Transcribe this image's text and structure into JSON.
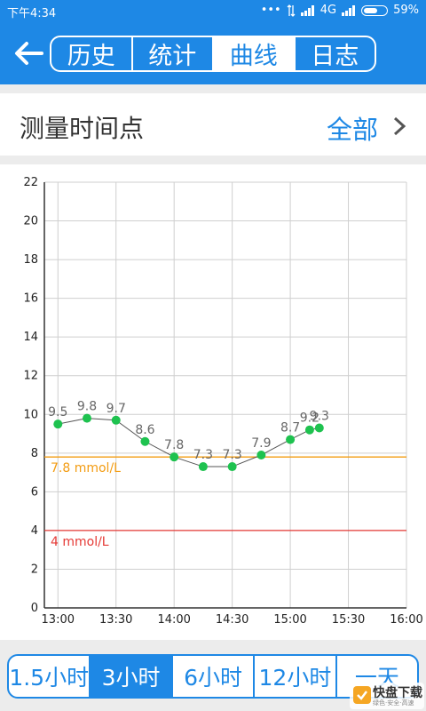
{
  "status_bar": {
    "time": "下午4:34",
    "signal_text": "4G",
    "battery_percent": "59%",
    "battery_level": 0.59
  },
  "header": {
    "tabs": [
      "历史",
      "统计",
      "曲线",
      "日志"
    ],
    "active_tab": 2
  },
  "filter": {
    "label": "测量时间点",
    "value": "全部"
  },
  "chart_data": {
    "type": "line",
    "x": [
      "13:00",
      "13:15",
      "13:30",
      "13:45",
      "14:00",
      "14:15",
      "14:30",
      "14:45",
      "15:00",
      "15:10",
      "15:15"
    ],
    "values": [
      9.5,
      9.8,
      9.7,
      8.6,
      7.8,
      7.3,
      7.3,
      7.9,
      8.7,
      9.2,
      9.3
    ],
    "point_labels": [
      "9.5",
      "9.8",
      "9.7",
      "8.6",
      "7.8",
      "7.3",
      "7.3",
      "7.9",
      "8.7",
      "9.2",
      "9.3"
    ],
    "x_ticks": [
      "13:00",
      "13:30",
      "14:00",
      "14:30",
      "15:00",
      "15:30",
      "16:00"
    ],
    "y_ticks": [
      "0",
      "2",
      "4",
      "6",
      "8",
      "10",
      "12",
      "14",
      "16",
      "18",
      "20",
      "22"
    ],
    "ylim": [
      0,
      22
    ],
    "xlim": [
      "12:53",
      "16:00"
    ],
    "grid": true,
    "reference_lines": [
      {
        "value": 7.8,
        "label": "7.8 mmol/L",
        "color": "#f39c12"
      },
      {
        "value": 4,
        "label": "4 mmol/L",
        "color": "#e53935"
      }
    ],
    "line_color": "#555555",
    "point_color": "#1ec24f"
  },
  "range_tabs": {
    "items": [
      "1.5小时",
      "3小时",
      "6小时",
      "12小时",
      "一天"
    ],
    "active": 1
  },
  "watermark": {
    "title": "快盘下载",
    "subtitle": "绿色·安全·高速"
  },
  "colors": {
    "primary": "#1e88e5"
  }
}
